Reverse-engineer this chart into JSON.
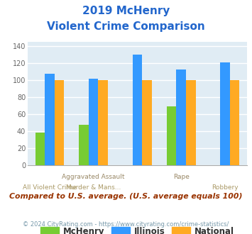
{
  "title_line1": "2019 McHenry",
  "title_line2": "Violent Crime Comparison",
  "series": {
    "McHenry": [
      38,
      47,
      0,
      69,
      0
    ],
    "Illinois": [
      108,
      102,
      130,
      113,
      121
    ],
    "National": [
      100,
      100,
      100,
      100,
      100
    ]
  },
  "colors": {
    "McHenry": "#77cc33",
    "Illinois": "#3399ff",
    "National": "#ffaa22"
  },
  "ylim": [
    0,
    145
  ],
  "yticks": [
    0,
    20,
    40,
    60,
    80,
    100,
    120,
    140
  ],
  "n_groups": 5,
  "top_xlabels": [
    "",
    "Aggravated Assault",
    "",
    "Rape",
    ""
  ],
  "bot_xlabels": [
    "All Violent Crime",
    "Murder & Mans...",
    "",
    "",
    "Robbery"
  ],
  "title_color": "#2266cc",
  "note": "Compared to U.S. average. (U.S. average equals 100)",
  "note_color": "#993300",
  "footer": "© 2024 CityRating.com - https://www.cityrating.com/crime-statistics/",
  "footer_color": "#7799aa",
  "bg_color": "#ffffff",
  "plot_bg": "#e0ecf4",
  "grid_color": "#ffffff"
}
